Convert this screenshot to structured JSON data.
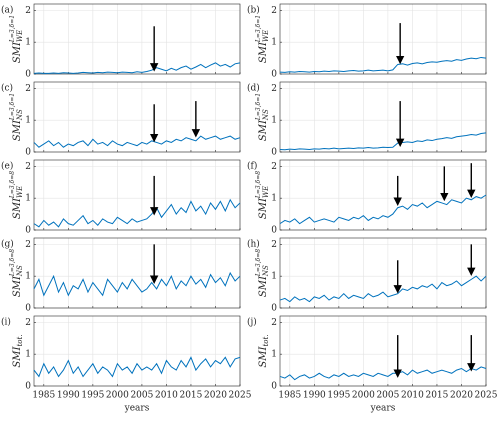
{
  "chart_data": [
    {
      "type": "line",
      "label": "(a)",
      "ylabel": {
        "base": "SMI",
        "sup": "L=3,δ=1",
        "sub": "WE"
      },
      "color": "#0072bd",
      "x": [
        1983,
        1984,
        1985,
        1986,
        1987,
        1988,
        1989,
        1990,
        1991,
        1992,
        1993,
        1994,
        1995,
        1996,
        1997,
        1998,
        1999,
        2000,
        2001,
        2002,
        2003,
        2004,
        2005,
        2006,
        2007,
        2008,
        2009,
        2010,
        2011,
        2012,
        2013,
        2014,
        2015,
        2016,
        2017,
        2018,
        2019,
        2020,
        2021,
        2022,
        2023,
        2024,
        2025
      ],
      "values": [
        0.02,
        0.03,
        0.02,
        0.02,
        0.03,
        0.02,
        0.04,
        0.03,
        0.02,
        0.03,
        0.05,
        0.04,
        0.03,
        0.05,
        0.04,
        0.06,
        0.05,
        0.04,
        0.06,
        0.05,
        0.04,
        0.07,
        0.05,
        0.08,
        0.12,
        0.2,
        0.15,
        0.1,
        0.18,
        0.12,
        0.2,
        0.25,
        0.15,
        0.22,
        0.3,
        0.2,
        0.28,
        0.35,
        0.25,
        0.3,
        0.22,
        0.32,
        0.35
      ],
      "arrows": [
        {
          "x": 2007.5,
          "y": [
            1.5,
            0.12
          ]
        }
      ],
      "xlim": [
        1983,
        2025
      ],
      "xticks": [
        1985,
        1990,
        1995,
        2000,
        2005,
        2010,
        2015,
        2020,
        2025
      ],
      "ylim": [
        0,
        2.2
      ],
      "yticks": [
        0,
        1,
        2
      ],
      "grid": true
    },
    {
      "type": "line",
      "label": "(b)",
      "ylabel": {
        "base": "SMI",
        "sup": "L=3,δ=1",
        "sub": "WE"
      },
      "color": "#0072bd",
      "x": [
        1983,
        1984,
        1985,
        1986,
        1987,
        1988,
        1989,
        1990,
        1991,
        1992,
        1993,
        1994,
        1995,
        1996,
        1997,
        1998,
        1999,
        2000,
        2001,
        2002,
        2003,
        2004,
        2005,
        2006,
        2007,
        2008,
        2009,
        2010,
        2011,
        2012,
        2013,
        2014,
        2015,
        2016,
        2017,
        2018,
        2019,
        2020,
        2021,
        2022,
        2023,
        2024,
        2025
      ],
      "values": [
        0.06,
        0.05,
        0.07,
        0.06,
        0.08,
        0.07,
        0.06,
        0.08,
        0.07,
        0.09,
        0.08,
        0.1,
        0.09,
        0.08,
        0.1,
        0.11,
        0.09,
        0.1,
        0.12,
        0.1,
        0.11,
        0.12,
        0.1,
        0.13,
        0.3,
        0.32,
        0.28,
        0.33,
        0.35,
        0.32,
        0.36,
        0.38,
        0.37,
        0.4,
        0.42,
        0.4,
        0.45,
        0.43,
        0.47,
        0.5,
        0.48,
        0.52,
        0.5
      ],
      "arrows": [
        {
          "x": 2007.5,
          "y": [
            1.6,
            0.35
          ]
        }
      ],
      "xlim": [
        1983,
        2025
      ],
      "xticks": [
        1985,
        1990,
        1995,
        2000,
        2005,
        2010,
        2015,
        2020,
        2025
      ],
      "ylim": [
        0,
        2.2
      ],
      "yticks": [
        0,
        1,
        2
      ],
      "grid": true
    },
    {
      "type": "line",
      "label": "(c)",
      "ylabel": {
        "base": "SMI",
        "sup": "L=3,δ=1",
        "sub": "NS"
      },
      "color": "#0072bd",
      "x": [
        1983,
        1984,
        1985,
        1986,
        1987,
        1988,
        1989,
        1990,
        1991,
        1992,
        1993,
        1994,
        1995,
        1996,
        1997,
        1998,
        1999,
        2000,
        2001,
        2002,
        2003,
        2004,
        2005,
        2006,
        2007,
        2008,
        2009,
        2010,
        2011,
        2012,
        2013,
        2014,
        2015,
        2016,
        2017,
        2018,
        2019,
        2020,
        2021,
        2022,
        2023,
        2024,
        2025
      ],
      "values": [
        0.3,
        0.15,
        0.25,
        0.35,
        0.2,
        0.3,
        0.15,
        0.25,
        0.2,
        0.3,
        0.35,
        0.2,
        0.4,
        0.25,
        0.3,
        0.2,
        0.35,
        0.25,
        0.2,
        0.3,
        0.25,
        0.2,
        0.3,
        0.25,
        0.35,
        0.3,
        0.25,
        0.35,
        0.3,
        0.4,
        0.35,
        0.45,
        0.4,
        0.35,
        0.5,
        0.4,
        0.45,
        0.5,
        0.4,
        0.45,
        0.5,
        0.4,
        0.45
      ],
      "arrows": [
        {
          "x": 2007.5,
          "y": [
            1.5,
            0.35
          ]
        },
        {
          "x": 2016,
          "y": [
            1.6,
            0.5
          ]
        }
      ],
      "xlim": [
        1983,
        2025
      ],
      "xticks": [
        1985,
        1990,
        1995,
        2000,
        2005,
        2010,
        2015,
        2020,
        2025
      ],
      "ylim": [
        0,
        2.2
      ],
      "yticks": [
        0,
        1,
        2
      ],
      "grid": true
    },
    {
      "type": "line",
      "label": "(d)",
      "ylabel": {
        "base": "SMI",
        "sup": "L=3,δ=1",
        "sub": "NS"
      },
      "color": "#0072bd",
      "x": [
        1983,
        1984,
        1985,
        1986,
        1987,
        1988,
        1989,
        1990,
        1991,
        1992,
        1993,
        1994,
        1995,
        1996,
        1997,
        1998,
        1999,
        2000,
        2001,
        2002,
        2003,
        2004,
        2005,
        2006,
        2007,
        2008,
        2009,
        2010,
        2011,
        2012,
        2013,
        2014,
        2015,
        2016,
        2017,
        2018,
        2019,
        2020,
        2021,
        2022,
        2023,
        2024,
        2025
      ],
      "values": [
        0.08,
        0.07,
        0.09,
        0.08,
        0.1,
        0.09,
        0.08,
        0.1,
        0.09,
        0.11,
        0.1,
        0.12,
        0.1,
        0.11,
        0.12,
        0.11,
        0.13,
        0.12,
        0.14,
        0.12,
        0.13,
        0.15,
        0.14,
        0.15,
        0.28,
        0.3,
        0.32,
        0.3,
        0.35,
        0.33,
        0.38,
        0.36,
        0.4,
        0.42,
        0.45,
        0.43,
        0.48,
        0.5,
        0.52,
        0.55,
        0.53,
        0.58,
        0.6
      ],
      "arrows": [
        {
          "x": 2007.5,
          "y": [
            1.6,
            0.2
          ]
        }
      ],
      "xlim": [
        1983,
        2025
      ],
      "xticks": [
        1985,
        1990,
        1995,
        2000,
        2005,
        2010,
        2015,
        2020,
        2025
      ],
      "ylim": [
        0,
        2.2
      ],
      "yticks": [
        0,
        1,
        2
      ],
      "grid": true
    },
    {
      "type": "line",
      "label": "(e)",
      "ylabel": {
        "base": "SMI",
        "sup": "L=3,δ=8",
        "sub": "WE"
      },
      "color": "#0072bd",
      "x": [
        1983,
        1984,
        1985,
        1986,
        1987,
        1988,
        1989,
        1990,
        1991,
        1992,
        1993,
        1994,
        1995,
        1996,
        1997,
        1998,
        1999,
        2000,
        2001,
        2002,
        2003,
        2004,
        2005,
        2006,
        2007,
        2008,
        2009,
        2010,
        2011,
        2012,
        2013,
        2014,
        2015,
        2016,
        2017,
        2018,
        2019,
        2020,
        2021,
        2022,
        2023,
        2024,
        2025
      ],
      "values": [
        0.2,
        0.1,
        0.3,
        0.15,
        0.25,
        0.1,
        0.35,
        0.2,
        0.15,
        0.3,
        0.45,
        0.2,
        0.3,
        0.15,
        0.35,
        0.25,
        0.2,
        0.4,
        0.3,
        0.2,
        0.35,
        0.25,
        0.3,
        0.35,
        0.5,
        0.7,
        0.4,
        0.6,
        0.8,
        0.5,
        0.7,
        0.55,
        0.9,
        0.6,
        0.75,
        0.5,
        0.85,
        0.65,
        0.9,
        0.6,
        0.95,
        0.7,
        0.85
      ],
      "arrows": [
        {
          "x": 2007.5,
          "y": [
            1.7,
            0.5
          ]
        }
      ],
      "xlim": [
        1983,
        2025
      ],
      "xticks": [
        1985,
        1990,
        1995,
        2000,
        2005,
        2010,
        2015,
        2020,
        2025
      ],
      "ylim": [
        0,
        2.2
      ],
      "yticks": [
        0,
        1,
        2
      ],
      "grid": true
    },
    {
      "type": "line",
      "label": "(f)",
      "ylabel": {
        "base": "SMI",
        "sup": "L=3,δ=8",
        "sub": "WE"
      },
      "color": "#0072bd",
      "x": [
        1983,
        1984,
        1985,
        1986,
        1987,
        1988,
        1989,
        1990,
        1991,
        1992,
        1993,
        1994,
        1995,
        1996,
        1997,
        1998,
        1999,
        2000,
        2001,
        2002,
        2003,
        2004,
        2005,
        2006,
        2007,
        2008,
        2009,
        2010,
        2011,
        2012,
        2013,
        2014,
        2015,
        2016,
        2017,
        2018,
        2019,
        2020,
        2021,
        2022,
        2023,
        2024,
        2025
      ],
      "values": [
        0.2,
        0.3,
        0.25,
        0.35,
        0.2,
        0.3,
        0.4,
        0.25,
        0.3,
        0.35,
        0.3,
        0.25,
        0.4,
        0.35,
        0.3,
        0.4,
        0.35,
        0.45,
        0.3,
        0.4,
        0.35,
        0.45,
        0.4,
        0.5,
        0.7,
        0.75,
        0.65,
        0.8,
        0.75,
        0.85,
        0.7,
        0.8,
        0.9,
        0.85,
        0.8,
        0.95,
        0.9,
        0.85,
        1.0,
        0.95,
        1.05,
        1.0,
        1.1
      ],
      "arrows": [
        {
          "x": 2007,
          "y": [
            1.7,
            0.8
          ]
        },
        {
          "x": 2016.5,
          "y": [
            2.0,
            0.95
          ]
        },
        {
          "x": 2022,
          "y": [
            2.1,
            1.05
          ]
        }
      ],
      "xlim": [
        1983,
        2025
      ],
      "xticks": [
        1985,
        1990,
        1995,
        2000,
        2005,
        2010,
        2015,
        2020,
        2025
      ],
      "ylim": [
        0,
        2.2
      ],
      "yticks": [
        0,
        1,
        2
      ],
      "grid": true
    },
    {
      "type": "line",
      "label": "(g)",
      "ylabel": {
        "base": "SMI",
        "sup": "L=3,δ=8",
        "sub": "NS"
      },
      "color": "#0072bd",
      "x": [
        1983,
        1984,
        1985,
        1986,
        1987,
        1988,
        1989,
        1990,
        1991,
        1992,
        1993,
        1994,
        1995,
        1996,
        1997,
        1998,
        1999,
        2000,
        2001,
        2002,
        2003,
        2004,
        2005,
        2006,
        2007,
        2008,
        2009,
        2010,
        2011,
        2012,
        2013,
        2014,
        2015,
        2016,
        2017,
        2018,
        2019,
        2020,
        2021,
        2022,
        2023,
        2024,
        2025
      ],
      "values": [
        0.6,
        0.9,
        0.4,
        0.7,
        1.0,
        0.5,
        0.8,
        0.4,
        0.7,
        0.6,
        0.9,
        0.5,
        0.8,
        0.6,
        0.4,
        0.9,
        0.7,
        0.5,
        0.8,
        0.6,
        0.9,
        0.7,
        0.5,
        0.6,
        0.8,
        0.6,
        0.9,
        0.7,
        1.0,
        0.6,
        0.85,
        0.7,
        1.0,
        0.75,
        0.9,
        0.65,
        1.05,
        0.8,
        0.95,
        0.7,
        1.1,
        0.85,
        1.0
      ],
      "arrows": [
        {
          "x": 2007.5,
          "y": [
            2.0,
            0.8
          ]
        }
      ],
      "xlim": [
        1983,
        2025
      ],
      "xticks": [
        1985,
        1990,
        1995,
        2000,
        2005,
        2010,
        2015,
        2020,
        2025
      ],
      "ylim": [
        0,
        2.2
      ],
      "yticks": [
        0,
        1,
        2
      ],
      "grid": true
    },
    {
      "type": "line",
      "label": "(h)",
      "ylabel": {
        "base": "SMI",
        "sup": "L=3,δ=8",
        "sub": "NS"
      },
      "color": "#0072bd",
      "x": [
        1983,
        1984,
        1985,
        1986,
        1987,
        1988,
        1989,
        1990,
        1991,
        1992,
        1993,
        1994,
        1995,
        1996,
        1997,
        1998,
        1999,
        2000,
        2001,
        2002,
        2003,
        2004,
        2005,
        2006,
        2007,
        2008,
        2009,
        2010,
        2011,
        2012,
        2013,
        2014,
        2015,
        2016,
        2017,
        2018,
        2019,
        2020,
        2021,
        2022,
        2023,
        2024,
        2025
      ],
      "values": [
        0.25,
        0.3,
        0.2,
        0.35,
        0.25,
        0.3,
        0.2,
        0.35,
        0.3,
        0.4,
        0.25,
        0.35,
        0.3,
        0.45,
        0.3,
        0.4,
        0.35,
        0.3,
        0.45,
        0.35,
        0.4,
        0.5,
        0.35,
        0.4,
        0.45,
        0.6,
        0.55,
        0.65,
        0.6,
        0.7,
        0.65,
        0.75,
        0.6,
        0.8,
        0.7,
        0.75,
        0.85,
        0.7,
        0.8,
        0.9,
        1.0,
        0.85,
        1.0
      ],
      "arrows": [
        {
          "x": 2007,
          "y": [
            1.5,
            0.5
          ]
        },
        {
          "x": 2022,
          "y": [
            2.0,
            1.05
          ]
        }
      ],
      "xlim": [
        1983,
        2025
      ],
      "xticks": [
        1985,
        1990,
        1995,
        2000,
        2005,
        2010,
        2015,
        2020,
        2025
      ],
      "ylim": [
        0,
        2.2
      ],
      "yticks": [
        0,
        1,
        2
      ],
      "grid": true
    },
    {
      "type": "line",
      "label": "(i)",
      "ylabel": {
        "base": "SMI",
        "sub": "tot."
      },
      "color": "#0072bd",
      "xlabel": "years",
      "show_xtick_labels": true,
      "x": [
        1983,
        1984,
        1985,
        1986,
        1987,
        1988,
        1989,
        1990,
        1991,
        1992,
        1993,
        1994,
        1995,
        1996,
        1997,
        1998,
        1999,
        2000,
        2001,
        2002,
        2003,
        2004,
        2005,
        2006,
        2007,
        2008,
        2009,
        2010,
        2011,
        2012,
        2013,
        2014,
        2015,
        2016,
        2017,
        2018,
        2019,
        2020,
        2021,
        2022,
        2023,
        2024,
        2025
      ],
      "values": [
        0.5,
        0.3,
        0.7,
        0.4,
        0.6,
        0.3,
        0.5,
        0.8,
        0.4,
        0.6,
        0.3,
        0.5,
        0.7,
        0.4,
        0.6,
        0.5,
        0.3,
        0.7,
        0.5,
        0.6,
        0.4,
        0.7,
        0.5,
        0.6,
        0.5,
        0.7,
        0.4,
        0.8,
        0.6,
        0.5,
        0.8,
        0.6,
        0.9,
        0.5,
        0.7,
        0.85,
        0.6,
        0.8,
        0.7,
        0.9,
        0.6,
        0.85,
        0.9
      ],
      "xlim": [
        1983,
        2025
      ],
      "xticks": [
        1985,
        1990,
        1995,
        2000,
        2005,
        2010,
        2015,
        2020,
        2025
      ],
      "ylim": [
        0,
        2.2
      ],
      "yticks": [
        0,
        1,
        2
      ],
      "grid": true
    },
    {
      "type": "line",
      "label": "(j)",
      "ylabel": {
        "base": "SMI",
        "sub": "tot."
      },
      "color": "#0072bd",
      "xlabel": "years",
      "show_xtick_labels": true,
      "x": [
        1983,
        1984,
        1985,
        1986,
        1987,
        1988,
        1989,
        1990,
        1991,
        1992,
        1993,
        1994,
        1995,
        1996,
        1997,
        1998,
        1999,
        2000,
        2001,
        2002,
        2003,
        2004,
        2005,
        2006,
        2007,
        2008,
        2009,
        2010,
        2011,
        2012,
        2013,
        2014,
        2015,
        2016,
        2017,
        2018,
        2019,
        2020,
        2021,
        2022,
        2023,
        2024,
        2025
      ],
      "values": [
        0.3,
        0.25,
        0.35,
        0.2,
        0.3,
        0.35,
        0.25,
        0.3,
        0.4,
        0.3,
        0.25,
        0.35,
        0.3,
        0.4,
        0.3,
        0.35,
        0.3,
        0.4,
        0.35,
        0.3,
        0.4,
        0.35,
        0.3,
        0.4,
        0.4,
        0.45,
        0.35,
        0.5,
        0.4,
        0.45,
        0.5,
        0.4,
        0.45,
        0.5,
        0.45,
        0.4,
        0.5,
        0.55,
        0.45,
        0.55,
        0.5,
        0.6,
        0.55
      ],
      "arrows": [
        {
          "x": 2007,
          "y": [
            1.6,
            0.3
          ]
        },
        {
          "x": 2022,
          "y": [
            1.6,
            0.5
          ]
        }
      ],
      "xlim": [
        1983,
        2025
      ],
      "xticks": [
        1985,
        1990,
        1995,
        2000,
        2005,
        2010,
        2015,
        2020,
        2025
      ],
      "ylim": [
        0,
        2.2
      ],
      "yticks": [
        0,
        1,
        2
      ],
      "grid": true
    }
  ]
}
